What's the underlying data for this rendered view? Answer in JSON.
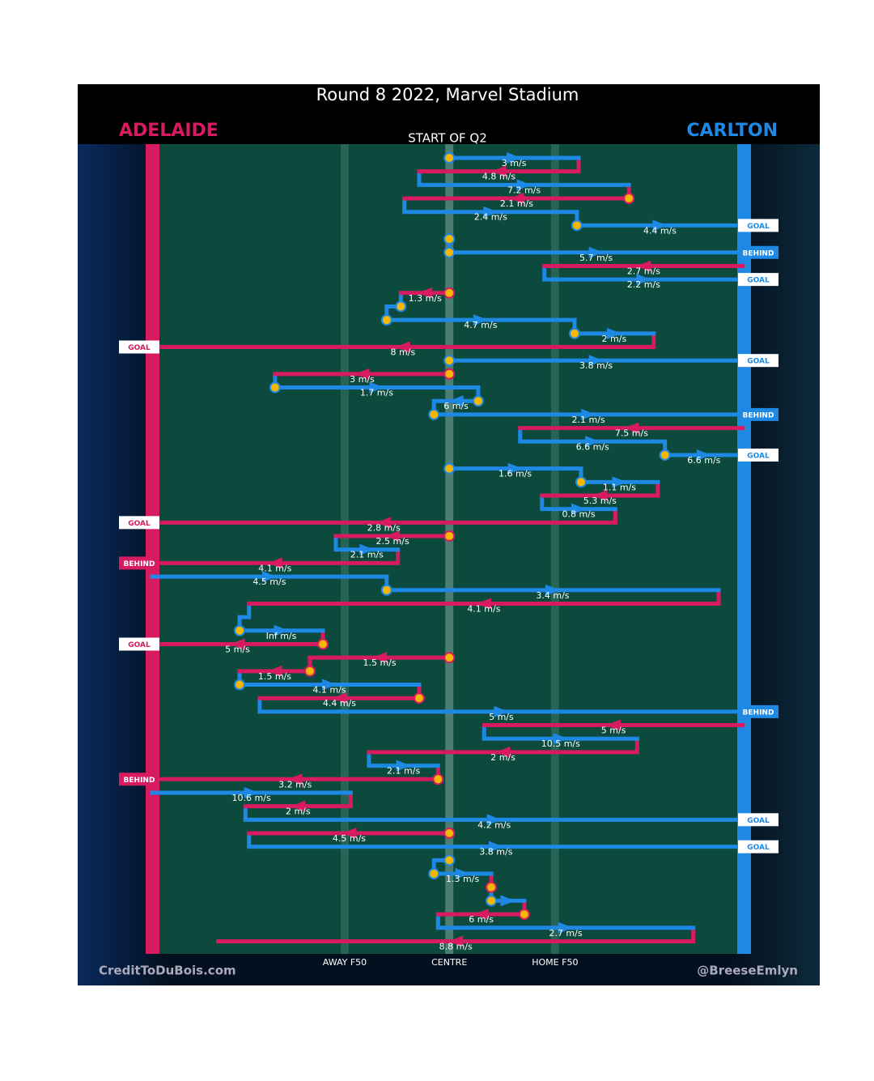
{
  "chart_data": {
    "type": "flow",
    "title": "Round 8 2022, Marvel Stadium",
    "subtitle": "START OF Q2",
    "teams": [
      {
        "name": "ADELAIDE",
        "color": "#d81b60"
      },
      {
        "name": "CARLTON",
        "color": "#1e88e5"
      }
    ],
    "xlim": [
      0,
      100
    ],
    "xticks": [
      {
        "value": 32.6,
        "label": "AWAY F50"
      },
      {
        "value": 50.3,
        "label": "CENTRE"
      },
      {
        "value": 68.2,
        "label": "HOME F50"
      }
    ],
    "footer_left": "CreditToDuBois.com",
    "footer_right": "@BreeseEmlyn",
    "moves": [
      {
        "color": "#1e88e5",
        "from": 50.3,
        "to": 72.2,
        "label": "3 m/s",
        "stoppage": true
      },
      {
        "color": "#d81b60",
        "from": 72.2,
        "to": 45.2,
        "label": "4.8 m/s"
      },
      {
        "color": "#1e88e5",
        "from": 45.2,
        "to": 80.7,
        "label": "7.2 m/s"
      },
      {
        "color": "#d81b60",
        "from": 80.7,
        "to": 42.7,
        "label": "2.1 m/s",
        "stoppage": true
      },
      {
        "color": "#1e88e5",
        "from": 42.7,
        "to": 71.9,
        "label": "2.4 m/s"
      },
      {
        "color": "#1e88e5",
        "from": 71.9,
        "to": 100,
        "label": "4.4 m/s",
        "stoppage": true,
        "outcome": "GOAL"
      },
      {
        "color": "#1e88e5",
        "from": 50.3,
        "to": 50.3,
        "label": null,
        "stoppage": true
      },
      {
        "color": "#1e88e5",
        "from": 50.3,
        "to": 100,
        "label": "5.7 m/s",
        "stoppage": true,
        "outcome": "BEHIND"
      },
      {
        "color": "#d81b60",
        "from": 100,
        "to": 66.4,
        "label": "2.7 m/s"
      },
      {
        "color": "#1e88e5",
        "from": 66.4,
        "to": 100,
        "label": "2.2 m/s",
        "outcome": "GOAL"
      },
      {
        "color": "#d81b60",
        "from": 50.3,
        "to": 42.1,
        "label": "1.3 m/s",
        "stoppage": true
      },
      {
        "color": "#1e88e5",
        "from": 42.1,
        "to": 39.7,
        "label": null,
        "stoppage": true
      },
      {
        "color": "#1e88e5",
        "from": 39.7,
        "to": 71.5,
        "label": "4.7 m/s",
        "stoppage": true
      },
      {
        "color": "#1e88e5",
        "from": 71.5,
        "to": 84.9,
        "label": "2 m/s",
        "stoppage": true
      },
      {
        "color": "#d81b60",
        "from": 84.9,
        "to": 0,
        "label": "8 m/s",
        "outcome": "GOAL"
      },
      {
        "color": "#1e88e5",
        "from": 50.3,
        "to": 100,
        "label": "3.8 m/s",
        "stoppage": true,
        "outcome": "GOAL"
      },
      {
        "color": "#d81b60",
        "from": 50.3,
        "to": 20.8,
        "label": "3 m/s",
        "stoppage": true
      },
      {
        "color": "#1e88e5",
        "from": 20.8,
        "to": 55.2,
        "label": "1.7 m/s",
        "stoppage": true
      },
      {
        "color": "#1e88e5",
        "from": 55.2,
        "to": 47.7,
        "label": "6 m/s",
        "stoppage": true
      },
      {
        "color": "#1e88e5",
        "from": 47.7,
        "to": 100,
        "label": "2.1 m/s",
        "stoppage": true,
        "outcome": "BEHIND"
      },
      {
        "color": "#d81b60",
        "from": 100,
        "to": 62.3,
        "label": "7.5 m/s"
      },
      {
        "color": "#1e88e5",
        "from": 62.3,
        "to": 86.8,
        "label": "6.6 m/s"
      },
      {
        "color": "#1e88e5",
        "from": 86.8,
        "to": 100,
        "label": "6.6 m/s",
        "stoppage": true,
        "outcome": "GOAL"
      },
      {
        "color": "#1e88e5",
        "from": 50.3,
        "to": 72.6,
        "label": "1.6 m/s",
        "stoppage": true
      },
      {
        "color": "#1e88e5",
        "from": 72.6,
        "to": 85.6,
        "label": "1.1 m/s",
        "stoppage": true
      },
      {
        "color": "#d81b60",
        "from": 85.6,
        "to": 66.0,
        "label": "5.3 m/s"
      },
      {
        "color": "#1e88e5",
        "from": 66.0,
        "to": 78.4,
        "label": "0.8 m/s"
      },
      {
        "color": "#d81b60",
        "from": 78.4,
        "to": 0,
        "label": "2.8 m/s",
        "outcome": "GOAL"
      },
      {
        "color": "#d81b60",
        "from": 50.3,
        "to": 31.1,
        "label": "2.5 m/s",
        "stoppage": true
      },
      {
        "color": "#1e88e5",
        "from": 31.1,
        "to": 41.6,
        "label": "2.1 m/s"
      },
      {
        "color": "#d81b60",
        "from": 41.6,
        "to": 0,
        "label": "4.1 m/s",
        "outcome": "BEHIND"
      },
      {
        "color": "#1e88e5",
        "from": 0,
        "to": 39.7,
        "label": "4.5 m/s"
      },
      {
        "color": "#1e88e5",
        "from": 39.7,
        "to": 95.9,
        "label": "3.4 m/s",
        "stoppage": true
      },
      {
        "color": "#d81b60",
        "from": 95.9,
        "to": 16.4,
        "label": "4.1 m/s"
      },
      {
        "color": "#1e88e5",
        "from": 16.4,
        "to": 14.8,
        "label": null
      },
      {
        "color": "#1e88e5",
        "from": 14.8,
        "to": 28.9,
        "label": "Inf m/s",
        "stoppage": true
      },
      {
        "color": "#d81b60",
        "from": 28.9,
        "to": 0,
        "label": "5 m/s",
        "stoppage": true,
        "outcome": "GOAL"
      },
      {
        "color": "#d81b60",
        "from": 50.3,
        "to": 26.7,
        "label": "1.5 m/s",
        "stoppage": true
      },
      {
        "color": "#d81b60",
        "from": 26.7,
        "to": 14.8,
        "label": "1.5 m/s",
        "stoppage": true
      },
      {
        "color": "#1e88e5",
        "from": 14.8,
        "to": 45.2,
        "label": "4.1 m/s",
        "stoppage": true
      },
      {
        "color": "#d81b60",
        "from": 45.2,
        "to": 18.2,
        "label": "4.4 m/s",
        "stoppage": true
      },
      {
        "color": "#1e88e5",
        "from": 18.2,
        "to": 100,
        "label": "5 m/s",
        "outcome": "BEHIND"
      },
      {
        "color": "#d81b60",
        "from": 100,
        "to": 56.2,
        "label": "5 m/s"
      },
      {
        "color": "#1e88e5",
        "from": 56.2,
        "to": 82.1,
        "label": "10.5 m/s"
      },
      {
        "color": "#d81b60",
        "from": 82.1,
        "to": 36.7,
        "label": "2 m/s"
      },
      {
        "color": "#1e88e5",
        "from": 36.7,
        "to": 48.4,
        "label": "2.1 m/s"
      },
      {
        "color": "#d81b60",
        "from": 48.4,
        "to": 0,
        "label": "3.2 m/s",
        "stoppage": true,
        "outcome": "BEHIND"
      },
      {
        "color": "#1e88e5",
        "from": 0,
        "to": 33.6,
        "label": "10.6 m/s"
      },
      {
        "color": "#d81b60",
        "from": 33.6,
        "to": 15.8,
        "label": "2 m/s"
      },
      {
        "color": "#1e88e5",
        "from": 15.8,
        "to": 100,
        "label": "4.2 m/s",
        "outcome": "GOAL"
      },
      {
        "color": "#d81b60",
        "from": 50.3,
        "to": 16.4,
        "label": "4.5 m/s",
        "stoppage": true
      },
      {
        "color": "#1e88e5",
        "from": 16.4,
        "to": 100,
        "label": "3.8 m/s",
        "outcome": "GOAL"
      },
      {
        "color": "#1e88e5",
        "from": 50.3,
        "to": 47.7,
        "label": null,
        "stoppage": true
      },
      {
        "color": "#1e88e5",
        "from": 47.7,
        "to": 57.4,
        "label": "1.3 m/s",
        "stoppage": true
      },
      {
        "color": "#d81b60",
        "from": 57.4,
        "to": 57.4,
        "label": null,
        "stoppage": true
      },
      {
        "color": "#1e88e5",
        "from": 57.4,
        "to": 63.0,
        "label": null,
        "stoppage": true
      },
      {
        "color": "#d81b60",
        "from": 63.0,
        "to": 48.4,
        "label": "6 m/s",
        "stoppage": true
      },
      {
        "color": "#1e88e5",
        "from": 48.4,
        "to": 91.6,
        "label": "2.7 m/s"
      },
      {
        "color": "#d81b60",
        "from": 91.6,
        "to": 11.2,
        "label": "8.8 m/s"
      }
    ]
  }
}
